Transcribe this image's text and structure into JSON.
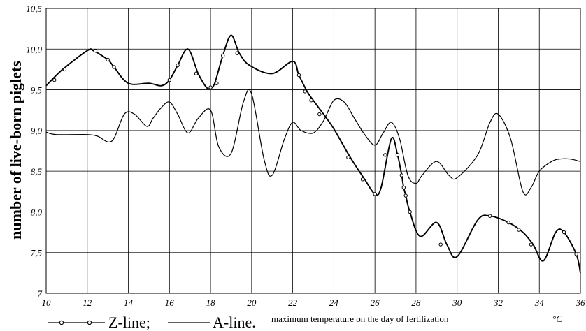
{
  "chart_data": {
    "type": "line",
    "title": "",
    "xlabel": "maximum temperature on the day of fertilization",
    "xunit": "°C",
    "ylabel": "number of live-born piglets",
    "xlim": [
      10,
      36
    ],
    "ylim": [
      7,
      10.5
    ],
    "xticks": [
      "10",
      "12",
      "14",
      "16",
      "18",
      "20",
      "22",
      "24",
      "26",
      "28",
      "30",
      "32",
      "34",
      "36"
    ],
    "yticks": [
      "7",
      "7,5",
      "8,0",
      "8,5",
      "9,0",
      "9,5",
      "10,0",
      "10,5"
    ],
    "grid": true,
    "legend": [
      {
        "label": "Z-line;",
        "marker": "circle"
      },
      {
        "label": "A-line.",
        "marker": "none"
      }
    ],
    "series": [
      {
        "name": "Z-line;",
        "marker": "circle",
        "x": [
          10,
          10.8,
          12,
          12.3,
          13,
          13.3,
          14,
          15,
          15.6,
          16,
          16.4,
          16.9,
          17.4,
          17.8,
          18,
          18.2,
          18.6,
          19,
          19.4,
          19.9,
          21,
          22,
          22.3,
          22.7,
          23,
          23.5,
          24,
          24.8,
          25.5,
          26,
          26.3,
          26.8,
          27.1,
          27.3,
          27.4,
          27.5,
          27.7,
          28.2,
          29,
          29.5,
          30,
          31,
          31.6,
          32.5,
          33.2,
          33.7,
          34.2,
          34.8,
          35.2,
          35.8,
          36
        ],
        "values": [
          9.55,
          9.75,
          9.98,
          9.98,
          9.87,
          9.78,
          9.58,
          9.58,
          9.55,
          9.62,
          9.8,
          10.0,
          9.7,
          9.53,
          9.52,
          9.58,
          9.92,
          10.17,
          9.95,
          9.8,
          9.7,
          9.85,
          9.68,
          9.48,
          9.37,
          9.2,
          9.02,
          8.67,
          8.4,
          8.22,
          8.3,
          8.9,
          8.7,
          8.45,
          8.3,
          8.2,
          8.0,
          7.7,
          7.87,
          7.6,
          7.45,
          7.9,
          7.95,
          7.87,
          7.75,
          7.6,
          7.4,
          7.75,
          7.75,
          7.48,
          7.25
        ],
        "markers_x": [
          10.4,
          10.9,
          12.4,
          13.0,
          13.3,
          16.0,
          16.4,
          17.3,
          18.0,
          18.3,
          18.6,
          19.3,
          22.3,
          22.6,
          22.9,
          23.3,
          24.7,
          25.4,
          26.0,
          26.5,
          27.1,
          27.3,
          27.4,
          27.5,
          27.7,
          29.2,
          31.6,
          32.5,
          33.0,
          33.6,
          35.2,
          35.8
        ],
        "markers_values": [
          9.62,
          9.75,
          9.98,
          9.87,
          9.78,
          9.62,
          9.8,
          9.7,
          9.53,
          9.58,
          9.92,
          9.95,
          9.68,
          9.48,
          9.37,
          9.2,
          8.67,
          8.4,
          8.22,
          8.7,
          8.7,
          8.45,
          8.3,
          8.2,
          8.0,
          7.6,
          7.95,
          7.87,
          7.78,
          7.6,
          7.75,
          7.48
        ]
      },
      {
        "name": "A-line.",
        "marker": "none",
        "x": [
          10,
          10.5,
          12,
          12.5,
          13.2,
          13.8,
          14.3,
          14.9,
          15.2,
          15.6,
          16,
          16.4,
          16.9,
          17.4,
          18,
          18.4,
          19,
          19.6,
          20,
          20.6,
          21,
          21.6,
          22,
          22.4,
          23,
          23.5,
          24,
          24.5,
          25,
          25.5,
          26,
          26.4,
          26.8,
          27.2,
          27.6,
          28,
          28.3,
          29,
          29.6,
          30,
          31,
          31.6,
          32,
          32.6,
          33.2,
          33.6,
          34,
          34.6,
          35,
          35.5,
          36
        ],
        "values": [
          8.98,
          8.95,
          8.95,
          8.93,
          8.87,
          9.2,
          9.2,
          9.05,
          9.15,
          9.28,
          9.35,
          9.2,
          8.97,
          9.15,
          9.25,
          8.8,
          8.72,
          9.35,
          9.45,
          8.65,
          8.45,
          8.9,
          9.1,
          9.0,
          8.97,
          9.12,
          9.37,
          9.35,
          9.15,
          8.95,
          8.82,
          8.97,
          9.1,
          8.9,
          8.45,
          8.35,
          8.45,
          8.62,
          8.45,
          8.42,
          8.7,
          9.1,
          9.2,
          8.9,
          8.25,
          8.3,
          8.5,
          8.62,
          8.65,
          8.65,
          8.62
        ]
      }
    ]
  }
}
